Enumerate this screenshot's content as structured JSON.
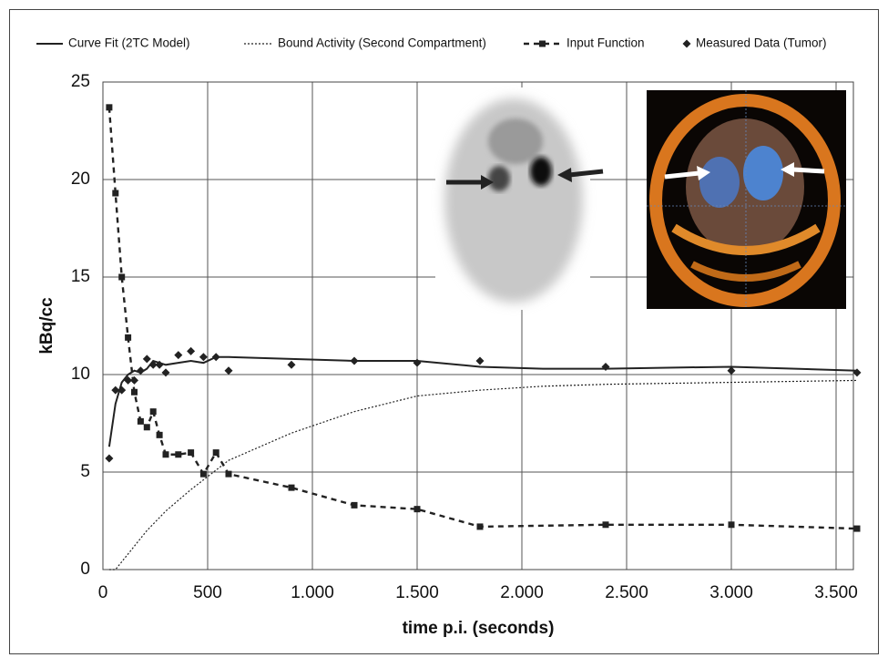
{
  "chart_data": {
    "type": "line",
    "x_label": "time p.i. (seconds)",
    "y_label": "kBq/cc",
    "xlim": [
      0,
      3600
    ],
    "ylim": [
      0,
      25
    ],
    "xticks": [
      0,
      500,
      {
        "value": 1000,
        "label": "1.000"
      },
      {
        "value": 1500,
        "label": "1.500"
      },
      {
        "value": 2000,
        "label": "2.000"
      },
      {
        "value": 2500,
        "label": "2.500"
      },
      {
        "value": 3000,
        "label": "3.000"
      },
      {
        "value": 3500,
        "label": "3.500"
      }
    ],
    "yticks": [
      0,
      5,
      10,
      15,
      20,
      25
    ],
    "grid": true,
    "legend": "top",
    "series": [
      {
        "name": "Curve Fit (2TC Model)",
        "color": "#222222",
        "line_style": "solid",
        "marker": "none",
        "x": [
          30,
          60,
          90,
          120,
          150,
          180,
          210,
          240,
          270,
          300,
          360,
          420,
          480,
          540,
          600,
          900,
          1200,
          1500,
          1800,
          2100,
          2400,
          3000,
          3600
        ],
        "values": [
          6.3,
          8.5,
          9.6,
          10.0,
          10.2,
          10.1,
          10.3,
          10.7,
          10.6,
          10.5,
          10.6,
          10.7,
          10.6,
          10.9,
          10.9,
          10.8,
          10.7,
          10.7,
          10.4,
          10.3,
          10.3,
          10.4,
          10.2
        ]
      },
      {
        "name": "Bound Activity (Second Compartment)",
        "color": "#222222",
        "line_style": "dotted",
        "marker": "none",
        "x": [
          30,
          60,
          90,
          150,
          210,
          300,
          420,
          540,
          600,
          900,
          1200,
          1500,
          1800,
          2100,
          2400,
          3000,
          3600
        ],
        "values": [
          0,
          0,
          0.4,
          1.2,
          2.0,
          3.0,
          4.1,
          5.1,
          5.6,
          7.0,
          8.1,
          8.9,
          9.2,
          9.4,
          9.5,
          9.6,
          9.7
        ]
      },
      {
        "name": "Input Function",
        "color": "#222222",
        "line_style": "dashed",
        "marker": "square",
        "x": [
          30,
          60,
          90,
          120,
          150,
          180,
          210,
          240,
          270,
          300,
          360,
          420,
          480,
          540,
          600,
          900,
          1200,
          1500,
          1800,
          2400,
          3000,
          3600
        ],
        "values": [
          23.7,
          19.3,
          15.0,
          11.9,
          9.1,
          7.6,
          7.3,
          8.1,
          6.9,
          5.9,
          5.9,
          6.0,
          4.9,
          6.0,
          4.9,
          4.2,
          3.3,
          3.1,
          2.2,
          2.3,
          2.3,
          2.1
        ]
      },
      {
        "name": "Measured Data (Tumor)",
        "color": "#222222",
        "line_style": "none",
        "marker": "diamond",
        "x": [
          30,
          60,
          90,
          120,
          150,
          180,
          210,
          240,
          270,
          300,
          360,
          420,
          480,
          540,
          600,
          900,
          1200,
          1500,
          1800,
          2400,
          3000,
          3600
        ],
        "values": [
          5.7,
          9.2,
          9.2,
          9.7,
          9.7,
          10.2,
          10.8,
          10.5,
          10.5,
          10.1,
          11.0,
          11.2,
          10.9,
          10.9,
          10.2,
          10.5,
          10.7,
          10.6,
          10.7,
          10.4,
          10.2,
          10.1
        ]
      }
    ]
  }
}
